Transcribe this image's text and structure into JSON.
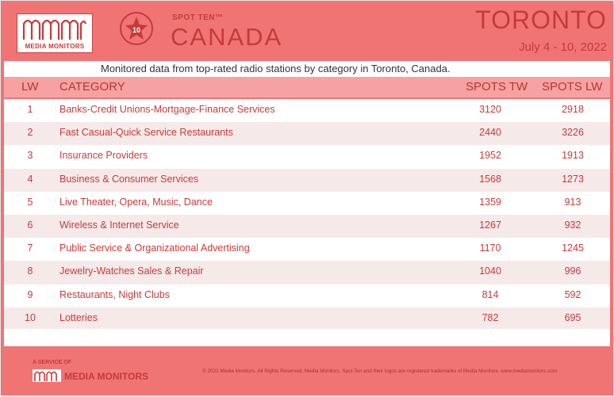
{
  "header": {
    "logo_text": "MEDIA MONITORS",
    "badge_number": "10",
    "spot_ten": "SPOT TEN™",
    "country": "CANADA",
    "city": "TORONTO",
    "dates": "July 4 - 10, 2022"
  },
  "subtitle": "Monitored data from top-rated radio stations by category in Toronto, Canada.",
  "table": {
    "headers": {
      "lw": "LW",
      "category": "CATEGORY",
      "spots_tw": "SPOTS TW",
      "spots_lw": "SPOTS LW"
    },
    "rows": [
      {
        "lw": "1",
        "category": "Banks-Credit Unions-Mortgage-Finance Services",
        "spots_tw": "3120",
        "spots_lw": "2918"
      },
      {
        "lw": "2",
        "category": "Fast Casual-Quick Service Restaurants",
        "spots_tw": "2440",
        "spots_lw": "3226"
      },
      {
        "lw": "3",
        "category": "Insurance Providers",
        "spots_tw": "1952",
        "spots_lw": "1913"
      },
      {
        "lw": "4",
        "category": "Business & Consumer Services",
        "spots_tw": "1568",
        "spots_lw": "1273"
      },
      {
        "lw": "5",
        "category": "Live Theater, Opera, Music, Dance",
        "spots_tw": "1359",
        "spots_lw": "913"
      },
      {
        "lw": "6",
        "category": "Wireless & Internet Service",
        "spots_tw": "1267",
        "spots_lw": "932"
      },
      {
        "lw": "7",
        "category": "Public Service & Organizational Advertising",
        "spots_tw": "1170",
        "spots_lw": "1245"
      },
      {
        "lw": "8",
        "category": "Jewelry-Watches Sales & Repair",
        "spots_tw": "1040",
        "spots_lw": "996"
      },
      {
        "lw": "9",
        "category": "Restaurants, Night Clubs",
        "spots_tw": "814",
        "spots_lw": "592"
      },
      {
        "lw": "10",
        "category": "Lotteries",
        "spots_tw": "782",
        "spots_lw": "695"
      }
    ]
  },
  "footer": {
    "service_label": "A SERVICE OF",
    "logo_text": "MEDIA MONITORS",
    "copyright": "© 2022 Media Monitors. All Rights Reserved. Media Monitors, Spot Ten and their logos are registered trademarks of Media Monitors. www.mediamonitors.com"
  },
  "colors": {
    "background": "#f07474",
    "accent": "#c73a3a",
    "header_row": "#f7a2a2",
    "row_alt": "#f6e9e9"
  }
}
